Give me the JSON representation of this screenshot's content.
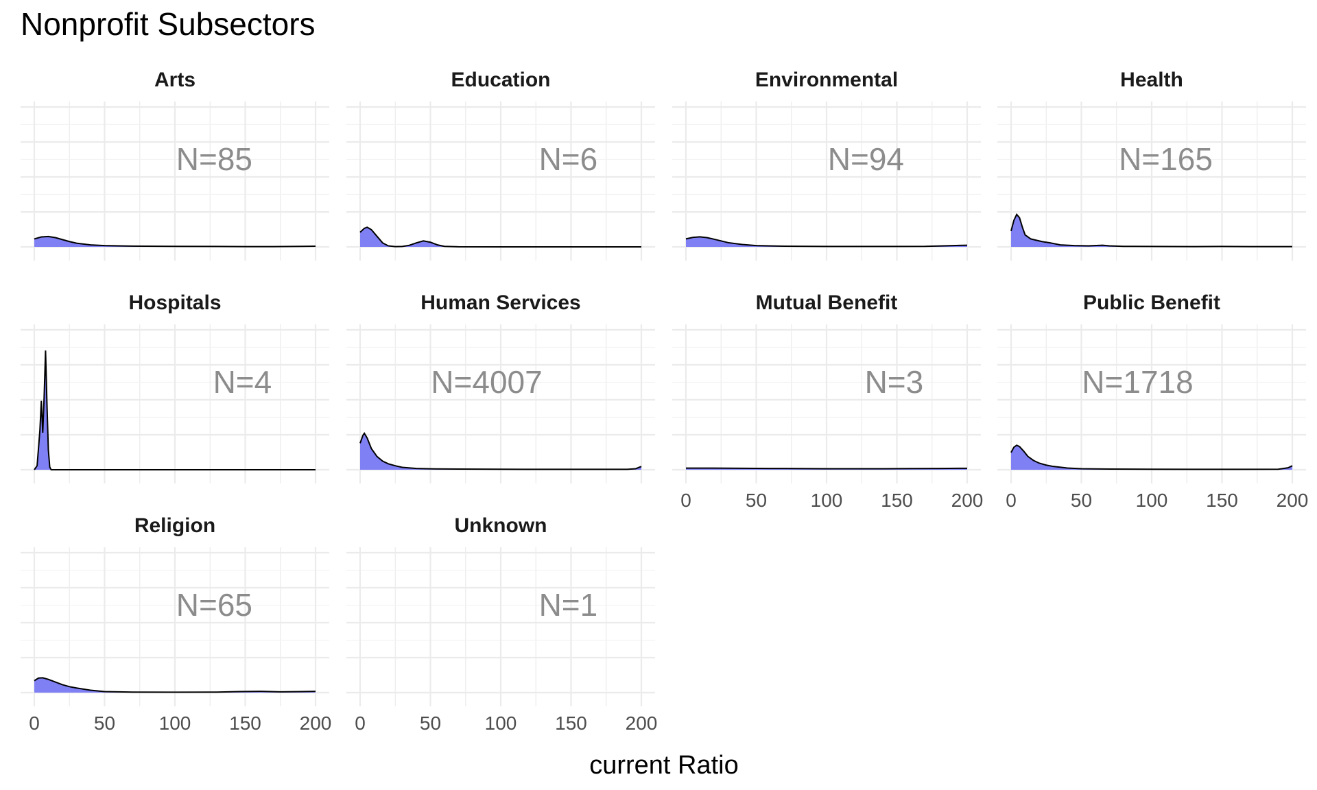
{
  "chart_data": {
    "type": "area",
    "title": "Nonprofit Subsectors",
    "xlabel": "current Ratio",
    "ylabel": "",
    "xlim": [
      0,
      200
    ],
    "x_ticks": [
      0,
      50,
      100,
      150,
      200
    ],
    "x_tick_labels": [
      "0",
      "50",
      "100",
      "150",
      "200"
    ],
    "grid": true,
    "fill_color": "#8080f5",
    "line_color": "#000000",
    "grid_color": "#ebebeb",
    "panels": [
      {
        "name": "Arts",
        "n_label": "N=85",
        "n_x": 128,
        "density": [
          [
            0,
            0.06
          ],
          [
            5,
            0.075
          ],
          [
            10,
            0.078
          ],
          [
            15,
            0.07
          ],
          [
            20,
            0.055
          ],
          [
            25,
            0.04
          ],
          [
            30,
            0.028
          ],
          [
            40,
            0.015
          ],
          [
            50,
            0.01
          ],
          [
            70,
            0.006
          ],
          [
            100,
            0.004
          ],
          [
            130,
            0.003
          ],
          [
            150,
            0.002
          ],
          [
            170,
            0.002
          ],
          [
            190,
            0.004
          ],
          [
            200,
            0.005
          ]
        ]
      },
      {
        "name": "Education",
        "n_label": "N=6",
        "n_x": 148,
        "density": [
          [
            0,
            0.11
          ],
          [
            3,
            0.14
          ],
          [
            5,
            0.148
          ],
          [
            8,
            0.13
          ],
          [
            12,
            0.08
          ],
          [
            16,
            0.03
          ],
          [
            20,
            0.008
          ],
          [
            25,
            0.002
          ],
          [
            30,
            0.003
          ],
          [
            35,
            0.012
          ],
          [
            40,
            0.03
          ],
          [
            45,
            0.045
          ],
          [
            50,
            0.035
          ],
          [
            55,
            0.015
          ],
          [
            60,
            0.004
          ],
          [
            70,
            0.0005
          ],
          [
            100,
            0
          ],
          [
            150,
            0
          ],
          [
            200,
            0
          ]
        ]
      },
      {
        "name": "Environmental",
        "n_label": "N=94",
        "n_x": 128,
        "density": [
          [
            0,
            0.06
          ],
          [
            5,
            0.072
          ],
          [
            10,
            0.076
          ],
          [
            15,
            0.07
          ],
          [
            20,
            0.058
          ],
          [
            25,
            0.045
          ],
          [
            30,
            0.032
          ],
          [
            40,
            0.018
          ],
          [
            50,
            0.01
          ],
          [
            70,
            0.005
          ],
          [
            100,
            0.003
          ],
          [
            130,
            0.003
          ],
          [
            150,
            0.003
          ],
          [
            170,
            0.004
          ],
          [
            190,
            0.01
          ],
          [
            200,
            0.012
          ]
        ]
      },
      {
        "name": "Health",
        "n_label": "N=165",
        "n_x": 110,
        "density": [
          [
            0,
            0.12
          ],
          [
            2,
            0.2
          ],
          [
            4,
            0.245
          ],
          [
            6,
            0.22
          ],
          [
            8,
            0.15
          ],
          [
            10,
            0.09
          ],
          [
            14,
            0.06
          ],
          [
            18,
            0.05
          ],
          [
            22,
            0.04
          ],
          [
            28,
            0.03
          ],
          [
            35,
            0.015
          ],
          [
            45,
            0.01
          ],
          [
            55,
            0.008
          ],
          [
            65,
            0.012
          ],
          [
            70,
            0.008
          ],
          [
            80,
            0.004
          ],
          [
            100,
            0.003
          ],
          [
            130,
            0.002
          ],
          [
            150,
            0.003
          ],
          [
            170,
            0.002
          ],
          [
            200,
            0.002
          ]
        ]
      },
      {
        "name": "Hospitals",
        "n_label": "N=4",
        "n_x": 148,
        "density": [
          [
            0,
            0
          ],
          [
            2,
            0.03
          ],
          [
            4,
            0.3
          ],
          [
            5,
            0.52
          ],
          [
            6,
            0.28
          ],
          [
            7,
            0.55
          ],
          [
            8,
            0.9
          ],
          [
            9,
            0.5
          ],
          [
            10,
            0.15
          ],
          [
            11,
            0.02
          ],
          [
            12,
            0
          ],
          [
            200,
            0
          ]
        ]
      },
      {
        "name": "Human Services",
        "n_label": "N=4007",
        "n_x": 90,
        "density": [
          [
            0,
            0.2
          ],
          [
            2,
            0.26
          ],
          [
            3,
            0.275
          ],
          [
            5,
            0.24
          ],
          [
            8,
            0.16
          ],
          [
            12,
            0.1
          ],
          [
            16,
            0.065
          ],
          [
            20,
            0.045
          ],
          [
            25,
            0.03
          ],
          [
            30,
            0.018
          ],
          [
            40,
            0.01
          ],
          [
            50,
            0.007
          ],
          [
            70,
            0.005
          ],
          [
            100,
            0.004
          ],
          [
            130,
            0.003
          ],
          [
            160,
            0.003
          ],
          [
            190,
            0.003
          ],
          [
            196,
            0.008
          ],
          [
            200,
            0.025
          ]
        ]
      },
      {
        "name": "Mutual Benefit",
        "n_label": "N=3",
        "n_x": 148,
        "density": [
          [
            0,
            0.012
          ],
          [
            20,
            0.012
          ],
          [
            40,
            0.011
          ],
          [
            60,
            0.01
          ],
          [
            80,
            0.009
          ],
          [
            100,
            0.008
          ],
          [
            120,
            0.008
          ],
          [
            140,
            0.008
          ],
          [
            160,
            0.009
          ],
          [
            180,
            0.01
          ],
          [
            200,
            0.011
          ]
        ]
      },
      {
        "name": "Public Benefit",
        "n_label": "N=1718",
        "n_x": 90,
        "density": [
          [
            0,
            0.13
          ],
          [
            2,
            0.17
          ],
          [
            4,
            0.185
          ],
          [
            6,
            0.175
          ],
          [
            9,
            0.14
          ],
          [
            12,
            0.1
          ],
          [
            16,
            0.07
          ],
          [
            20,
            0.05
          ],
          [
            25,
            0.035
          ],
          [
            30,
            0.025
          ],
          [
            40,
            0.013
          ],
          [
            50,
            0.008
          ],
          [
            70,
            0.005
          ],
          [
            100,
            0.004
          ],
          [
            130,
            0.003
          ],
          [
            160,
            0.003
          ],
          [
            190,
            0.004
          ],
          [
            197,
            0.015
          ],
          [
            200,
            0.03
          ]
        ]
      },
      {
        "name": "Religion",
        "n_label": "N=65",
        "n_x": 128,
        "density": [
          [
            0,
            0.09
          ],
          [
            3,
            0.11
          ],
          [
            6,
            0.112
          ],
          [
            10,
            0.1
          ],
          [
            15,
            0.08
          ],
          [
            20,
            0.06
          ],
          [
            25,
            0.045
          ],
          [
            30,
            0.035
          ],
          [
            40,
            0.018
          ],
          [
            50,
            0.008
          ],
          [
            70,
            0.004
          ],
          [
            100,
            0.003
          ],
          [
            130,
            0.004
          ],
          [
            145,
            0.008
          ],
          [
            160,
            0.01
          ],
          [
            175,
            0.006
          ],
          [
            190,
            0.008
          ],
          [
            200,
            0.01
          ]
        ]
      },
      {
        "name": "Unknown",
        "n_label": "N=1",
        "n_x": 148,
        "density": []
      }
    ]
  }
}
